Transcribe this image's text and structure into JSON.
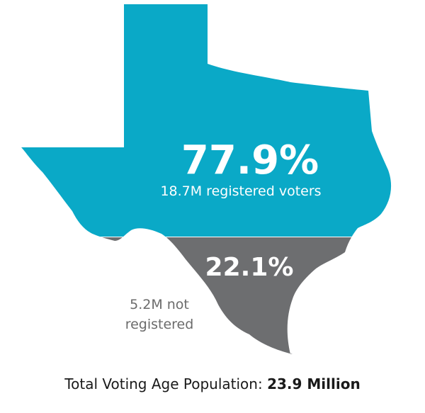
{
  "colors": {
    "registered": "#0aa9c7",
    "not_registered": "#6d6e70",
    "background": "#ffffff"
  },
  "chart_data": {
    "type": "pie",
    "categories": [
      "registered",
      "not registered"
    ],
    "values": [
      77.9,
      22.1
    ],
    "segments": [
      {
        "percent": 77.9,
        "percent_label": "77.9%",
        "count_label": "18.7M registered voters",
        "color": "#0aa9c7"
      },
      {
        "percent": 22.1,
        "percent_label": "22.1%",
        "count_label_lines": [
          "5.2M not",
          "registered"
        ],
        "color": "#6d6e70"
      }
    ],
    "total_prefix": "Total Voting Age Population: ",
    "total_value": "23.9 Million"
  }
}
